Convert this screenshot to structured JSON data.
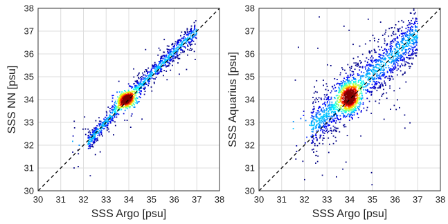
{
  "chart_data": [
    {
      "type": "scatter",
      "title": "",
      "xlabel": "SSS Argo [psu]",
      "ylabel": "SSS NN [psu]",
      "xlim": [
        30,
        38
      ],
      "ylim": [
        30,
        38
      ],
      "xticks": [
        "30",
        "31",
        "32",
        "33",
        "34",
        "35",
        "36",
        "37",
        "38"
      ],
      "yticks": [
        "30",
        "31",
        "32",
        "33",
        "34",
        "35",
        "36",
        "37",
        "38"
      ],
      "grid": true,
      "reference_line": "1:1 dashed",
      "colormap": "jet density (blue = low, red = high)",
      "density_peak": [
        33.9,
        34.0
      ],
      "main_trend": [
        [
          32.2,
          32.1
        ],
        [
          32.8,
          32.8
        ],
        [
          33.5,
          33.6
        ],
        [
          33.9,
          34.0
        ],
        [
          34.5,
          34.6
        ],
        [
          35.2,
          35.3
        ],
        [
          35.7,
          35.8
        ],
        [
          36.3,
          36.4
        ],
        [
          37.0,
          37.0
        ]
      ],
      "spread": 0.22
    },
    {
      "type": "scatter",
      "title": "",
      "xlabel": "SSS Argo [psu]",
      "ylabel": "SSS Aquarius [psu]",
      "xlim": [
        30,
        38
      ],
      "ylim": [
        30,
        38
      ],
      "xticks": [
        "30",
        "31",
        "32",
        "33",
        "34",
        "35",
        "36",
        "37",
        "38"
      ],
      "yticks": [
        "30",
        "31",
        "32",
        "33",
        "34",
        "35",
        "36",
        "37",
        "38"
      ],
      "grid": true,
      "reference_line": "1:1 dashed",
      "colormap": "jet density (blue = low, red = high)",
      "density_peak": [
        34.0,
        34.1
      ],
      "main_trend": [
        [
          32.3,
          32.8
        ],
        [
          32.9,
          33.3
        ],
        [
          33.5,
          33.8
        ],
        [
          34.0,
          34.1
        ],
        [
          34.6,
          34.8
        ],
        [
          35.2,
          35.3
        ],
        [
          35.7,
          35.7
        ],
        [
          36.4,
          36.4
        ],
        [
          37.0,
          36.9
        ]
      ],
      "spread": 0.55
    }
  ]
}
